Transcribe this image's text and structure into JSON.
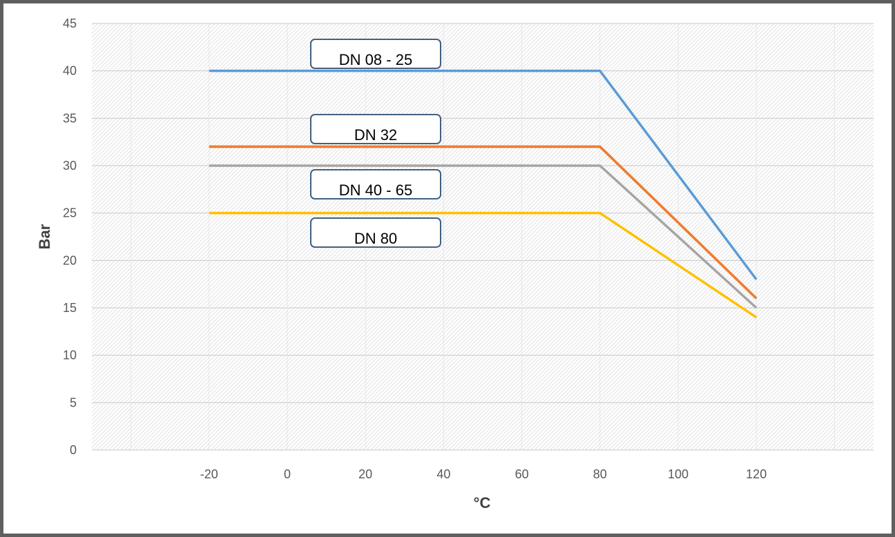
{
  "chart_data": {
    "type": "line",
    "title": "",
    "xlabel": "°C",
    "ylabel": "Bar",
    "xlim": [
      -50,
      150
    ],
    "ylim": [
      0,
      45
    ],
    "xticks": [
      -20,
      0,
      20,
      40,
      60,
      80,
      100,
      120
    ],
    "yticks": [
      0,
      5,
      10,
      15,
      20,
      25,
      30,
      35,
      40,
      45
    ],
    "x_tick_labels": [
      "-20",
      "0",
      "20",
      "40",
      "60",
      "80",
      "100",
      "120"
    ],
    "y_tick_labels": [
      "0",
      "5",
      "10",
      "15",
      "20",
      "25",
      "30",
      "35",
      "40",
      "45"
    ],
    "grid": true,
    "legend": "none",
    "series": [
      {
        "name": "DN 08 - 25",
        "color": "#5b9bd5",
        "x": [
          -20,
          80,
          120
        ],
        "y": [
          40,
          40,
          18
        ]
      },
      {
        "name": "DN 32",
        "color": "#ed7d31",
        "x": [
          -20,
          80,
          120
        ],
        "y": [
          32,
          32,
          16
        ]
      },
      {
        "name": "DN 40 - 65",
        "color": "#a5a5a5",
        "x": [
          -20,
          80,
          120
        ],
        "y": [
          30,
          30,
          15
        ]
      },
      {
        "name": "DN 80",
        "color": "#ffc000",
        "x": [
          -20,
          80,
          120
        ],
        "y": [
          25,
          25,
          14
        ]
      }
    ]
  },
  "callouts": [
    {
      "text": "DN 08 - 25"
    },
    {
      "text": "DN 32"
    },
    {
      "text": "DN 40 - 65"
    },
    {
      "text": "DN 80"
    }
  ]
}
